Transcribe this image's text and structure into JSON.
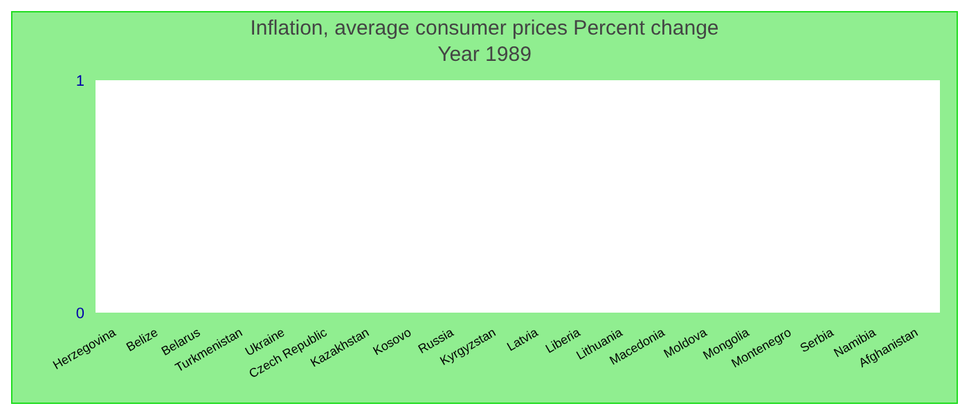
{
  "chart_data": {
    "type": "bar",
    "title": "Inflation, average consumer prices  Percent change",
    "subtitle": "Year 1989",
    "categories": [
      "Herzegovina",
      "Belize",
      "Belarus",
      "Turkmenistan",
      "Ukraine",
      "Czech Republic",
      "Kazakhstan",
      "Kosovo",
      "Russia",
      "Kyrgyzstan",
      "Latvia",
      "Liberia",
      "Lithuania",
      "Macedonia",
      "Moldova",
      "Mongolia",
      "Montenegro",
      "Serbia",
      "Namibia",
      "Afghanistan"
    ],
    "values": [
      0,
      0,
      0,
      0,
      0,
      0,
      0,
      0,
      0,
      0,
      0,
      0,
      0,
      0,
      0,
      0,
      0,
      0,
      0,
      0
    ],
    "ylim": [
      0,
      1
    ],
    "yticks": [
      0,
      1
    ]
  }
}
